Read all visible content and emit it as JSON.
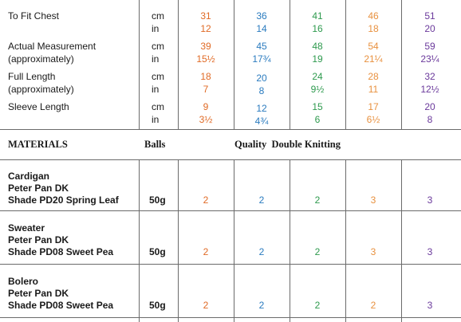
{
  "colors": {
    "size1": "#e06a25",
    "size2": "#2a7bbf",
    "size3": "#2e9a4e",
    "size4": "#e8913f",
    "size5": "#6b3a9c"
  },
  "measurements": {
    "rows": [
      {
        "label1": "To Fit Chest",
        "label2": "",
        "units": [
          "cm",
          "in"
        ],
        "values": [
          [
            "31",
            "12"
          ],
          [
            "36",
            "14"
          ],
          [
            "41",
            "16"
          ],
          [
            "46",
            "18"
          ],
          [
            "51",
            "20"
          ]
        ]
      },
      {
        "label1": "Actual Measurement",
        "label2": "(approximately)",
        "units": [
          "cm",
          "in"
        ],
        "values": [
          [
            "39",
            "15½"
          ],
          [
            "45",
            "17¾"
          ],
          [
            "48",
            "19"
          ],
          [
            "54",
            "21¼"
          ],
          [
            "59",
            "23¼"
          ]
        ]
      },
      {
        "label1": "Full Length",
        "label2": "(approximately)",
        "units": [
          "cm",
          "in"
        ],
        "values": [
          [
            "18",
            "7"
          ],
          [
            "20",
            "8"
          ],
          [
            "24",
            "9½"
          ],
          [
            "28",
            "11"
          ],
          [
            "32",
            "12½"
          ]
        ]
      },
      {
        "label1": "Sleeve Length",
        "label2": "",
        "units": [
          "cm",
          "in"
        ],
        "values": [
          [
            "9",
            "3½"
          ],
          [
            "12",
            "4¾"
          ],
          [
            "15",
            "6"
          ],
          [
            "17",
            "6½"
          ],
          [
            "20",
            "8"
          ]
        ]
      }
    ]
  },
  "materials_header": {
    "materials": "MATERIALS",
    "balls": "Balls",
    "quality": "Quality  Double Knitting"
  },
  "materials": [
    {
      "lines": [
        "Cardigan",
        "Peter Pan DK",
        "Shade PD20 Spring Leaf"
      ],
      "weight": "50g",
      "balls": [
        "2",
        "2",
        "2",
        "3",
        "3"
      ]
    },
    {
      "lines": [
        "Sweater",
        "Peter Pan DK",
        "Shade PD08 Sweet Pea"
      ],
      "weight": "50g",
      "balls": [
        "2",
        "2",
        "2",
        "3",
        "3"
      ]
    },
    {
      "lines": [
        "Bolero",
        "Peter Pan DK",
        "Shade PD08 Sweet Pea"
      ],
      "weight": "50g",
      "balls": [
        "2",
        "2",
        "2",
        "2",
        "3"
      ]
    }
  ]
}
